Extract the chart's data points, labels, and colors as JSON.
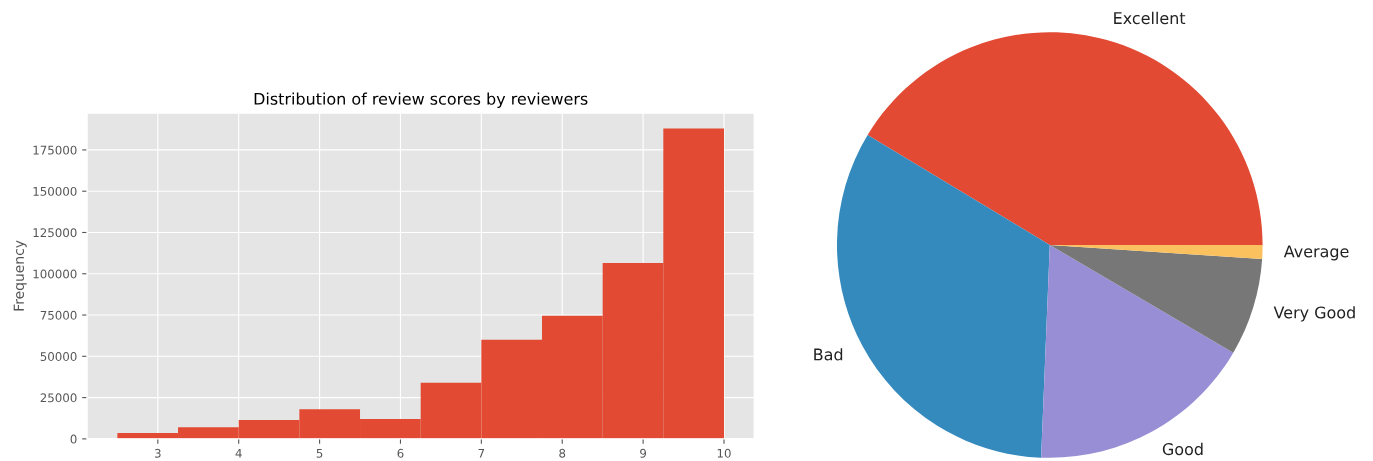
{
  "chart_data": [
    {
      "type": "histogram",
      "title": "Distribution of review scores by reviewers",
      "ylabel": "Frequency",
      "color": "#e24a33",
      "bins": [
        2.5,
        3.25,
        4.0,
        4.75,
        5.5,
        6.25,
        7.0,
        7.75,
        8.5,
        9.25,
        10.0
      ],
      "values": [
        3500,
        7000,
        11500,
        18000,
        12000,
        34000,
        60000,
        74500,
        106500,
        188000
      ],
      "xlim": [
        2.125,
        10.375
      ],
      "xticks": [
        3,
        4,
        5,
        6,
        7,
        8,
        9,
        10
      ],
      "ylim": [
        0,
        197400
      ],
      "yticks": [
        0,
        25000,
        50000,
        75000,
        100000,
        125000,
        150000,
        175000
      ],
      "grid": true
    },
    {
      "type": "pie",
      "categories": [
        "Excellent",
        "Bad",
        "Good",
        "Very Good",
        "Average"
      ],
      "values": [
        41.35,
        33.0,
        17.2,
        7.4,
        1.05
      ],
      "colors": [
        "#e24a33",
        "#348abd",
        "#988ed5",
        "#777777",
        "#fbc15e"
      ]
    }
  ]
}
